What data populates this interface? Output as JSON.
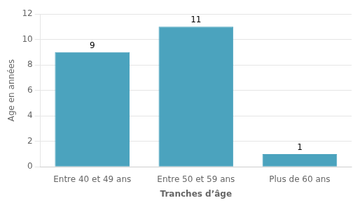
{
  "chart_data": {
    "type": "bar",
    "categories": [
      "Entre 40 et 49 ans",
      "Entre 50 et 59 ans",
      "Plus de 60 ans"
    ],
    "values": [
      9,
      11,
      1
    ],
    "color": "#4ba3be",
    "xlabel": "Tranches d’âge",
    "ylabel": "Age en années",
    "ylim": [
      0,
      12
    ],
    "yticks": [
      0,
      2,
      4,
      6,
      8,
      10,
      12
    ],
    "grid": true,
    "data_labels": true
  }
}
